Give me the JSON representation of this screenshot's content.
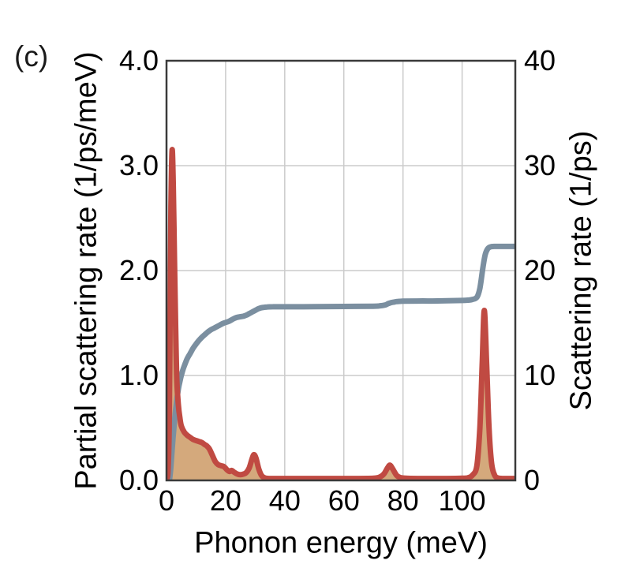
{
  "panel_label": "(c)",
  "axes": {
    "x": {
      "title": "Phonon energy (meV)",
      "range": [
        0,
        118
      ],
      "ticks": [
        {
          "v": 0,
          "label": "0"
        },
        {
          "v": 20,
          "label": "20"
        },
        {
          "v": 40,
          "label": "40"
        },
        {
          "v": 60,
          "label": "60"
        },
        {
          "v": 80,
          "label": "80"
        },
        {
          "v": 100,
          "label": "100"
        }
      ],
      "gridlines": [
        20,
        40,
        60,
        80,
        100
      ]
    },
    "left": {
      "title": "Partial scattering rate (1/ps/meV)",
      "range": [
        0,
        4
      ],
      "ticks": [
        {
          "v": 0,
          "label": "0.0"
        },
        {
          "v": 1,
          "label": "1.0"
        },
        {
          "v": 2,
          "label": "2.0"
        },
        {
          "v": 3,
          "label": "3.0"
        },
        {
          "v": 4,
          "label": "4.0"
        }
      ],
      "gridlines": [
        1,
        2,
        3
      ]
    },
    "right": {
      "title": "Scattering rate (1/ps)",
      "range": [
        0,
        40
      ],
      "ticks": [
        {
          "v": 0,
          "label": "0"
        },
        {
          "v": 10,
          "label": "10"
        },
        {
          "v": 20,
          "label": "20"
        },
        {
          "v": 30,
          "label": "30"
        },
        {
          "v": 40,
          "label": "40"
        }
      ]
    }
  },
  "colors": {
    "partial_line": "#c04a42",
    "partial_fill": "#d4a97c",
    "cumulative_line": "#7b8fa0",
    "frame": "#3a3a3a",
    "grid": "#cbcbcb",
    "text": "#000000",
    "background": "#ffffff"
  },
  "chart_data": {
    "type": "line",
    "title": "",
    "xlabel": "Phonon energy (meV)",
    "ylabel_left": "Partial scattering rate (1/ps/meV)",
    "ylabel_right": "Scattering rate (1/ps)",
    "xlim": [
      0,
      118
    ],
    "ylim_left": [
      0,
      4
    ],
    "ylim_right": [
      0,
      40
    ],
    "grid": true,
    "legend": false,
    "series": [
      {
        "name": "partial-scattering-rate",
        "axis": "left",
        "style": "filled-line",
        "color": "#c04a42",
        "fill": "#d4a97c",
        "points": [
          [
            0,
            0.02
          ],
          [
            0.5,
            0.08
          ],
          [
            0.9,
            0.5
          ],
          [
            1.2,
            1.5
          ],
          [
            1.5,
            2.6
          ],
          [
            1.9,
            3.15
          ],
          [
            2.3,
            2.8
          ],
          [
            2.7,
            2.1
          ],
          [
            3.1,
            1.45
          ],
          [
            3.5,
            0.95
          ],
          [
            4,
            0.72
          ],
          [
            4.5,
            0.6
          ],
          [
            5,
            0.52
          ],
          [
            6,
            0.46
          ],
          [
            7,
            0.43
          ],
          [
            8,
            0.41
          ],
          [
            9,
            0.39
          ],
          [
            10,
            0.38
          ],
          [
            11,
            0.37
          ],
          [
            12,
            0.36
          ],
          [
            13,
            0.34
          ],
          [
            13.6,
            0.33
          ],
          [
            14.5,
            0.3
          ],
          [
            15.5,
            0.24
          ],
          [
            16.5,
            0.18
          ],
          [
            17.5,
            0.15
          ],
          [
            18.5,
            0.14
          ],
          [
            19.5,
            0.13
          ],
          [
            20.5,
            0.1
          ],
          [
            21.3,
            0.085
          ],
          [
            22,
            0.095
          ],
          [
            22.8,
            0.08
          ],
          [
            24,
            0.06
          ],
          [
            25,
            0.055
          ],
          [
            26,
            0.06
          ],
          [
            27,
            0.075
          ],
          [
            28,
            0.12
          ],
          [
            29,
            0.21
          ],
          [
            29.6,
            0.245
          ],
          [
            30.3,
            0.21
          ],
          [
            31.2,
            0.11
          ],
          [
            32.2,
            0.045
          ],
          [
            33.5,
            0.022
          ],
          [
            36,
            0.018
          ],
          [
            40,
            0.018
          ],
          [
            45,
            0.018
          ],
          [
            50,
            0.018
          ],
          [
            55,
            0.018
          ],
          [
            60,
            0.018
          ],
          [
            65,
            0.018
          ],
          [
            70,
            0.02
          ],
          [
            72,
            0.03
          ],
          [
            73.5,
            0.06
          ],
          [
            74.8,
            0.12
          ],
          [
            75.6,
            0.145
          ],
          [
            76.5,
            0.11
          ],
          [
            77.8,
            0.05
          ],
          [
            79,
            0.028
          ],
          [
            81,
            0.02
          ],
          [
            85,
            0.018
          ],
          [
            90,
            0.018
          ],
          [
            95,
            0.018
          ],
          [
            100,
            0.02
          ],
          [
            102,
            0.025
          ],
          [
            103.5,
            0.05
          ],
          [
            105,
            0.14
          ],
          [
            106,
            0.5
          ],
          [
            106.8,
            1.1
          ],
          [
            107.5,
            1.62
          ],
          [
            108.3,
            1.1
          ],
          [
            109.1,
            0.5
          ],
          [
            110,
            0.16
          ],
          [
            111,
            0.05
          ],
          [
            112,
            0.025
          ],
          [
            114,
            0.018
          ],
          [
            118,
            0.018
          ]
        ]
      },
      {
        "name": "cumulative-scattering-rate",
        "axis": "right",
        "style": "line",
        "color": "#7b8fa0",
        "points": [
          [
            1,
            0
          ],
          [
            1.4,
            1
          ],
          [
            1.8,
            2.5
          ],
          [
            2.2,
            4
          ],
          [
            2.6,
            5.3
          ],
          [
            3,
            6.5
          ],
          [
            3.5,
            7.7
          ],
          [
            4,
            8.7
          ],
          [
            4.5,
            9.4
          ],
          [
            5,
            10
          ],
          [
            5.5,
            10.5
          ],
          [
            6,
            10.9
          ],
          [
            7,
            11.6
          ],
          [
            8,
            12.1
          ],
          [
            9,
            12.6
          ],
          [
            10,
            13
          ],
          [
            11,
            13.35
          ],
          [
            12,
            13.65
          ],
          [
            13,
            13.9
          ],
          [
            14,
            14.15
          ],
          [
            15,
            14.35
          ],
          [
            16,
            14.5
          ],
          [
            17,
            14.65
          ],
          [
            18,
            14.8
          ],
          [
            19,
            14.95
          ],
          [
            20,
            15.05
          ],
          [
            21,
            15.15
          ],
          [
            22,
            15.3
          ],
          [
            23,
            15.45
          ],
          [
            24,
            15.55
          ],
          [
            25,
            15.6
          ],
          [
            26,
            15.65
          ],
          [
            27,
            15.75
          ],
          [
            28,
            15.9
          ],
          [
            29,
            16.05
          ],
          [
            30,
            16.2
          ],
          [
            31,
            16.35
          ],
          [
            32,
            16.45
          ],
          [
            33,
            16.5
          ],
          [
            34,
            16.53
          ],
          [
            36,
            16.55
          ],
          [
            40,
            16.55
          ],
          [
            50,
            16.56
          ],
          [
            60,
            16.58
          ],
          [
            70,
            16.6
          ],
          [
            72,
            16.63
          ],
          [
            74,
            16.72
          ],
          [
            75,
            16.85
          ],
          [
            76,
            16.95
          ],
          [
            77,
            17
          ],
          [
            78,
            17.05
          ],
          [
            80,
            17.08
          ],
          [
            85,
            17.1
          ],
          [
            90,
            17.1
          ],
          [
            95,
            17.12
          ],
          [
            100,
            17.15
          ],
          [
            102,
            17.18
          ],
          [
            103.5,
            17.25
          ],
          [
            105,
            17.45
          ],
          [
            106,
            18.3
          ],
          [
            107,
            20.2
          ],
          [
            107.8,
            21.5
          ],
          [
            108.6,
            22.05
          ],
          [
            109.5,
            22.25
          ],
          [
            111,
            22.3
          ],
          [
            114,
            22.3
          ],
          [
            118,
            22.3
          ]
        ]
      }
    ]
  }
}
